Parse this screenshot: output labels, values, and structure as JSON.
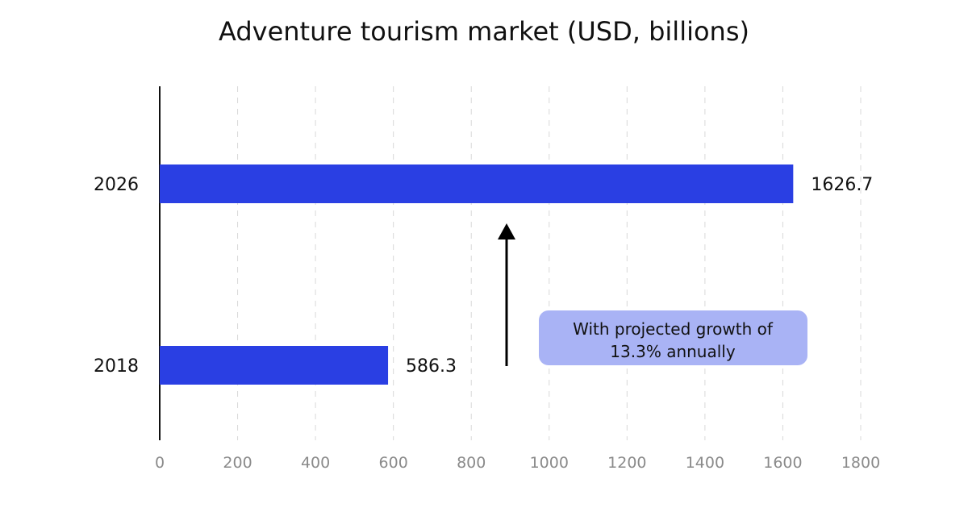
{
  "chart_data": {
    "type": "bar",
    "orientation": "horizontal",
    "title": "Adventure tourism market (USD, billions)",
    "categories": [
      "2026",
      "2018"
    ],
    "values": [
      1626.7,
      586.3
    ],
    "value_labels": [
      "1626.7",
      "586.3"
    ],
    "xlabel": "",
    "ylabel": "",
    "xlim": [
      0,
      1800
    ],
    "x_ticks": [
      0,
      200,
      400,
      600,
      800,
      1000,
      1200,
      1400,
      1600,
      1800
    ],
    "x_tick_labels": [
      "0",
      "200",
      "400",
      "600",
      "800",
      "1000",
      "1200",
      "1400",
      "1600",
      "1800"
    ],
    "grid": true,
    "legend": "none",
    "bar_color": "#2a3fe3",
    "annotation": {
      "text_lines": [
        "With projected growth of",
        "13.3% annually"
      ],
      "arrow": "up"
    }
  }
}
